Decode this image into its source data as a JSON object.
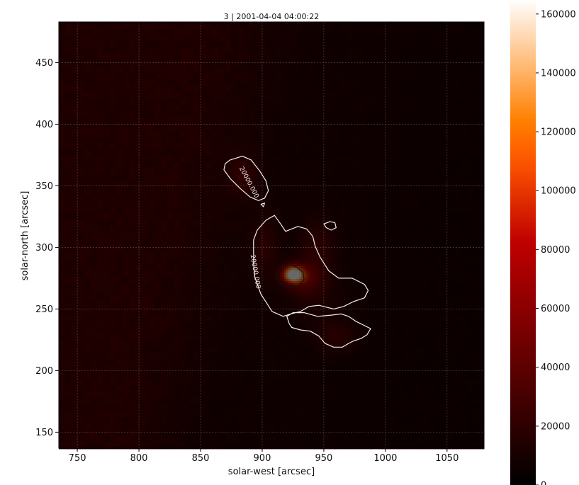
{
  "chart_data": {
    "type": "heatmap",
    "title": "3 | 2001-04-04 04:00:22",
    "xlabel": "solar-west [arcsec]",
    "ylabel": "solar-north [arcsec]",
    "xlim": [
      735,
      1080
    ],
    "ylim": [
      137,
      483
    ],
    "xticks": [
      750,
      800,
      850,
      900,
      950,
      1000,
      1050
    ],
    "yticks": [
      150,
      200,
      250,
      300,
      350,
      400,
      450
    ],
    "grid": true,
    "colormap": "gist_heat",
    "colorbar": {
      "vmin": 0,
      "vmax": 165000,
      "ticks": [
        0,
        20000,
        40000,
        60000,
        80000,
        100000,
        120000,
        140000,
        160000
      ]
    },
    "contours": [
      {
        "level": 20000,
        "label": "20000.000",
        "color": "#f2ece7",
        "regions": [
          [
            [
              874,
              371
            ],
            [
              884,
              374
            ],
            [
              891,
              371
            ],
            [
              898,
              362
            ],
            [
              903,
              354
            ],
            [
              905,
              346
            ],
            [
              902,
              340
            ],
            [
              897,
              338
            ],
            [
              890,
              341
            ],
            [
              882,
              348
            ],
            [
              874,
              356
            ],
            [
              869,
              363
            ],
            [
              870,
              368
            ]
          ],
          [
            [
              896,
              314
            ],
            [
              903,
              322
            ],
            [
              910,
              326
            ],
            [
              915,
              319
            ],
            [
              919,
              313
            ],
            [
              929,
              317
            ],
            [
              936,
              315
            ],
            [
              941,
              309
            ],
            [
              943,
              301
            ],
            [
              947,
              292
            ],
            [
              954,
              281
            ],
            [
              962,
              275
            ],
            [
              973,
              275
            ],
            [
              983,
              270
            ],
            [
              986,
              265
            ],
            [
              983,
              259
            ],
            [
              974,
              256
            ],
            [
              966,
              252
            ],
            [
              958,
              250
            ],
            [
              946,
              253
            ],
            [
              938,
              252
            ],
            [
              931,
              248
            ],
            [
              923,
              246
            ],
            [
              917,
              244
            ],
            [
              908,
              248
            ],
            [
              899,
              262
            ],
            [
              894,
              276
            ],
            [
              893,
              287
            ],
            [
              893,
              296
            ],
            [
              893,
              306
            ]
          ],
          [
            [
              920,
              244
            ],
            [
              922,
              238
            ],
            [
              924,
              235
            ],
            [
              931,
              233
            ],
            [
              939,
              232
            ],
            [
              946,
              228
            ],
            [
              951,
              222
            ],
            [
              958,
              219
            ],
            [
              965,
              219
            ],
            [
              970,
              222
            ],
            [
              974,
              224
            ],
            [
              980,
              226
            ],
            [
              985,
              229
            ],
            [
              988,
              234
            ],
            [
              982,
              237
            ],
            [
              976,
              240
            ],
            [
              970,
              244
            ],
            [
              964,
              246
            ],
            [
              956,
              245
            ],
            [
              945,
              244
            ],
            [
              934,
              247
            ],
            [
              925,
              247
            ]
          ],
          [
            [
              950,
              319
            ],
            [
              952,
              316
            ],
            [
              956,
              314
            ],
            [
              960,
              316
            ],
            [
              959,
              320
            ],
            [
              955,
              321
            ]
          ],
          [
            [
              899,
              335
            ],
            [
              902,
              336
            ],
            [
              901,
              333
            ]
          ]
        ]
      },
      {
        "level": 100000,
        "label": "",
        "color": "#111111",
        "regions": [
          [
            [
              914,
              284
            ],
            [
              921,
              286
            ],
            [
              928,
              284
            ],
            [
              933,
              280
            ],
            [
              934,
              274
            ],
            [
              930,
              269
            ],
            [
              922,
              268
            ],
            [
              914,
              271
            ],
            [
              911,
              277
            ]
          ]
        ]
      }
    ],
    "intensity_sources": [
      {
        "x": 925,
        "y": 278,
        "peak": 160000,
        "sigma_x": 6,
        "sigma_y": 5
      },
      {
        "x": 935,
        "y": 275,
        "peak": 45000,
        "sigma_x": 10,
        "sigma_y": 9
      },
      {
        "x": 945,
        "y": 300,
        "peak": 28000,
        "sigma_x": 10,
        "sigma_y": 16
      },
      {
        "x": 902,
        "y": 300,
        "peak": 22000,
        "sigma_x": 8,
        "sigma_y": 18
      },
      {
        "x": 960,
        "y": 228,
        "peak": 30000,
        "sigma_x": 11,
        "sigma_y": 9
      },
      {
        "x": 886,
        "y": 358,
        "peak": 19000,
        "sigma_x": 8,
        "sigma_y": 11
      },
      {
        "x": 944,
        "y": 262,
        "peak": 15000,
        "sigma_x": 16,
        "sigma_y": 14
      }
    ],
    "background_level": 13000
  }
}
